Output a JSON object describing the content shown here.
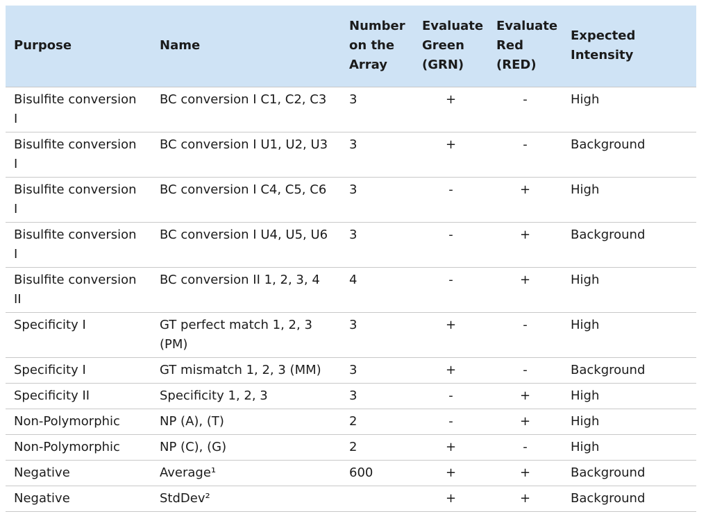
{
  "table": {
    "headers": [
      "Purpose",
      "Name",
      "Number on the Array",
      "Evaluate Green (GRN)",
      "Evaluate Red (RED)",
      "Expected Intensity"
    ],
    "rows": [
      [
        "Bisulfite conversion I",
        "BC conversion I C1, C2, C3",
        "3",
        "+",
        "-",
        "High"
      ],
      [
        "Bisulfite conversion I",
        "BC conversion I U1, U2, U3",
        "3",
        "+",
        "-",
        "Background"
      ],
      [
        "Bisulfite conversion I",
        "BC conversion I C4, C5, C6",
        "3",
        "-",
        "+",
        "High"
      ],
      [
        "Bisulfite conversion I",
        "BC conversion I U4, U5, U6",
        "3",
        "-",
        "+",
        "Background"
      ],
      [
        "Bisulfite conversion II",
        "BC conversion II 1, 2, 3, 4",
        "4",
        "-",
        "+",
        "High"
      ],
      [
        "Specificity I",
        "GT perfect match 1, 2, 3 (PM)",
        "3",
        "+",
        "-",
        "High"
      ],
      [
        "Specificity I",
        "GT mismatch 1, 2, 3 (MM)",
        "3",
        "+",
        "-",
        "Background"
      ],
      [
        "Specificity II",
        "Specificity 1, 2, 3",
        "3",
        "-",
        "+",
        "High"
      ],
      [
        "Non-Polymorphic",
        "NP (A), (T)",
        "2",
        "-",
        "+",
        "High"
      ],
      [
        "Non-Polymorphic",
        "NP (C), (G)",
        "2",
        "+",
        "-",
        "High"
      ],
      [
        "Negative",
        "Average¹",
        "600",
        "+",
        "+",
        "Background"
      ],
      [
        "Negative",
        "StdDev²",
        "",
        "+",
        "+",
        "Background"
      ]
    ]
  }
}
